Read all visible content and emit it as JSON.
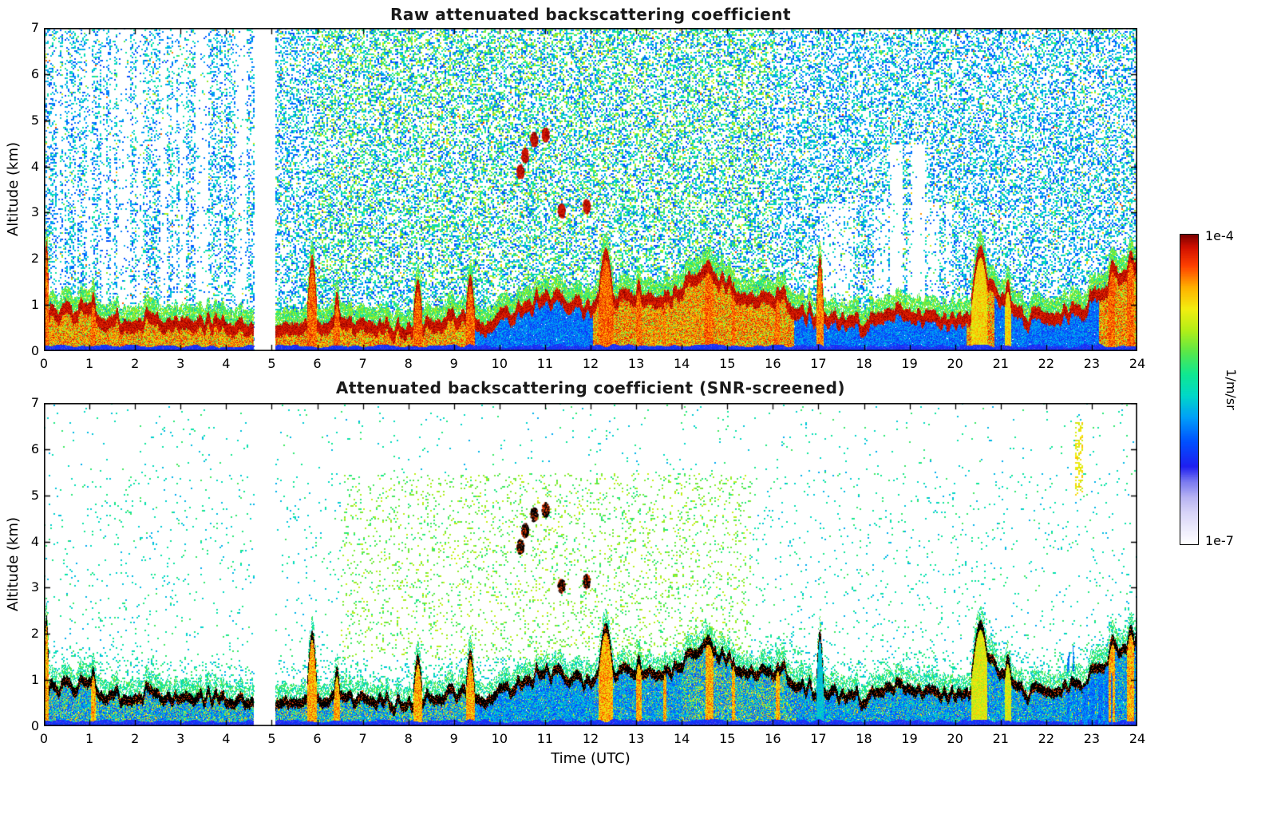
{
  "figure": {
    "background": "#ffffff",
    "text_color": "#000000"
  },
  "colorbar": {
    "max_label": "1e-4",
    "min_label": "1e-7",
    "units": "1/m/sr",
    "scale": "log",
    "stops": [
      [
        0.0,
        "#ffffff"
      ],
      [
        0.05,
        "#eceafc"
      ],
      [
        0.1,
        "#d8d4f8"
      ],
      [
        0.15,
        "#b8b4f2"
      ],
      [
        0.2,
        "#7b7bf0"
      ],
      [
        0.25,
        "#1f1ff0"
      ],
      [
        0.33,
        "#0050ff"
      ],
      [
        0.41,
        "#00a0f8"
      ],
      [
        0.48,
        "#00d8c8"
      ],
      [
        0.55,
        "#10e890"
      ],
      [
        0.62,
        "#58e84a"
      ],
      [
        0.69,
        "#b2ee18"
      ],
      [
        0.76,
        "#f2ee10"
      ],
      [
        0.83,
        "#ffb000"
      ],
      [
        0.9,
        "#ff4000"
      ],
      [
        0.96,
        "#d01000"
      ],
      [
        1.0,
        "#7c0000"
      ]
    ]
  },
  "chart_data": [
    {
      "type": "heatmap",
      "title": "Raw attenuated backscattering coefficient",
      "xlabel": "",
      "ylabel": "Altitude (km)",
      "xlim": [
        0,
        24
      ],
      "ylim": [
        0,
        7
      ],
      "x_ticks": [
        0,
        1,
        2,
        3,
        4,
        5,
        6,
        7,
        8,
        9,
        10,
        11,
        12,
        13,
        14,
        15,
        16,
        17,
        18,
        19,
        20,
        21,
        22,
        23,
        24
      ],
      "y_ticks": [
        0,
        1,
        2,
        3,
        4,
        5,
        6,
        7
      ],
      "colorbar_range": [
        "1e-7",
        "1e-4"
      ],
      "grid": false,
      "description": "Ceilometer raw attenuated backscatter: dense blue-cyan instrument noise above the boundary layer (greener/yellower 6-16 UTC), strong red aerosol layer capped dark-red near 0.5-1 km rising to ~2 km afternoon, dark-blue surface layer, white data gap near 4.6-5.1 UTC, small dark-red cloud echoes near 10.5-12 UTC at 3-4.7 km.",
      "data_gap_utc": [
        4.6,
        5.08
      ],
      "features": {
        "data_gap_utc": [
          4.6,
          5.08
        ],
        "boundary_layer_top_km": [
          [
            0,
            1.05
          ],
          [
            0.3,
            0.95
          ],
          [
            0.7,
            1.0
          ],
          [
            1.0,
            1.05
          ],
          [
            1.3,
            0.85
          ],
          [
            1.7,
            0.75
          ],
          [
            2.0,
            0.8
          ],
          [
            2.3,
            0.9
          ],
          [
            2.6,
            0.75
          ],
          [
            3.0,
            0.7
          ],
          [
            3.4,
            0.8
          ],
          [
            3.8,
            0.7
          ],
          [
            4.2,
            0.65
          ],
          [
            4.6,
            0.62
          ],
          [
            5.1,
            0.55
          ],
          [
            5.5,
            0.62
          ],
          [
            6.1,
            0.75
          ],
          [
            6.5,
            0.85
          ],
          [
            7.0,
            0.65
          ],
          [
            7.5,
            0.6
          ],
          [
            8.0,
            0.68
          ],
          [
            8.5,
            0.78
          ],
          [
            9.0,
            0.85
          ],
          [
            9.5,
            0.7
          ],
          [
            10.0,
            0.85
          ],
          [
            10.5,
            1.05
          ],
          [
            10.9,
            1.3
          ],
          [
            11.2,
            1.25
          ],
          [
            11.6,
            1.1
          ],
          [
            12.0,
            1.15
          ],
          [
            12.6,
            1.2
          ],
          [
            13.0,
            1.3
          ],
          [
            13.4,
            1.15
          ],
          [
            13.8,
            1.35
          ],
          [
            14.1,
            1.6
          ],
          [
            14.5,
            1.8
          ],
          [
            15.0,
            1.55
          ],
          [
            15.4,
            1.3
          ],
          [
            15.8,
            1.25
          ],
          [
            16.2,
            1.35
          ],
          [
            16.5,
            1.05
          ],
          [
            17.0,
            0.9
          ],
          [
            17.4,
            0.75
          ],
          [
            18.0,
            0.7
          ],
          [
            18.5,
            0.85
          ],
          [
            19.0,
            1.05
          ],
          [
            19.4,
            0.85
          ],
          [
            20.0,
            0.75
          ],
          [
            20.3,
            0.9
          ],
          [
            20.6,
            1.9
          ],
          [
            20.9,
            1.4
          ],
          [
            21.2,
            1.0
          ],
          [
            21.6,
            0.8
          ],
          [
            22.0,
            0.85
          ],
          [
            22.4,
            0.95
          ],
          [
            22.8,
            1.05
          ],
          [
            23.2,
            1.4
          ],
          [
            23.6,
            1.8
          ],
          [
            24,
            2.0
          ]
        ],
        "blue_interior_ranges_utc": [
          [
            9.45,
            12.05
          ],
          [
            16.45,
            20.25
          ],
          [
            20.85,
            23.15
          ]
        ],
        "plumes": [
          {
            "t0": 0.0,
            "t1": 0.1,
            "top": 2.3,
            "kind": "red"
          },
          {
            "t0": 1.0,
            "t1": 1.15,
            "top": 1.25,
            "kind": "red"
          },
          {
            "t0": 5.78,
            "t1": 5.98,
            "top": 2.0,
            "kind": "red"
          },
          {
            "t0": 6.35,
            "t1": 6.5,
            "top": 1.25,
            "kind": "red"
          },
          {
            "t0": 8.1,
            "t1": 8.3,
            "top": 1.5,
            "kind": "red"
          },
          {
            "t0": 9.25,
            "t1": 9.45,
            "top": 1.6,
            "kind": "red"
          },
          {
            "t0": 12.15,
            "t1": 12.5,
            "top": 2.15,
            "kind": "red"
          },
          {
            "t0": 12.95,
            "t1": 13.15,
            "top": 1.5,
            "kind": "red"
          },
          {
            "t0": 13.55,
            "t1": 13.7,
            "top": 1.3,
            "kind": "red"
          },
          {
            "t0": 14.35,
            "t1": 14.8,
            "top": 1.9,
            "kind": "red"
          },
          {
            "t0": 15.05,
            "t1": 15.2,
            "top": 1.45,
            "kind": "red"
          },
          {
            "t0": 16.0,
            "t1": 16.2,
            "top": 1.35,
            "kind": "red"
          },
          {
            "t0": 16.95,
            "t1": 17.1,
            "top": 2.0,
            "kind": "cyan"
          },
          {
            "t0": 20.35,
            "t1": 20.75,
            "top": 2.2,
            "kind": "orange"
          },
          {
            "t0": 21.05,
            "t1": 21.25,
            "top": 1.5,
            "kind": "orange"
          },
          {
            "t0": 23.3,
            "t1": 23.6,
            "top": 1.9,
            "kind": "red"
          },
          {
            "t0": 23.7,
            "t1": 24.0,
            "top": 2.1,
            "kind": "red"
          }
        ],
        "clouds_utc_km": [
          [
            10.45,
            3.9
          ],
          [
            10.55,
            4.25
          ],
          [
            10.75,
            4.6
          ],
          [
            11.0,
            4.7
          ],
          [
            11.35,
            3.05
          ],
          [
            11.9,
            3.15
          ]
        ],
        "blue_column_band": {
          "t0": 22.45,
          "t1": 23.45,
          "top": 1.9
        },
        "yellow_streak": {
          "t0": 22.62,
          "t1": 22.78,
          "alt0": 5.0,
          "alt1": 6.6
        },
        "white_columns_utc": [
          [
            18.55,
            18.82
          ],
          [
            19.05,
            19.32
          ]
        ]
      }
    },
    {
      "type": "heatmap",
      "title": "Attenuated backscattering coefficient (SNR-screened)",
      "xlabel": "Time (UTC)",
      "ylabel": "Altitude (km)",
      "xlim": [
        0,
        24
      ],
      "ylim": [
        0,
        7
      ],
      "x_ticks": [
        0,
        1,
        2,
        3,
        4,
        5,
        6,
        7,
        8,
        9,
        10,
        11,
        12,
        13,
        14,
        15,
        16,
        17,
        18,
        19,
        20,
        21,
        22,
        23,
        24
      ],
      "y_ticks": [
        0,
        1,
        2,
        3,
        4,
        5,
        6,
        7
      ],
      "colorbar_range": [
        "1e-7",
        "1e-4"
      ],
      "grid": false,
      "description": "Same scene after SNR screening: free troposphere mostly white with sparse cyan/green speckle and faint yellow speckle 7-15 UTC between 2-5 km; aerosol layer top rendered as saturated black band over blue interior with red/orange plumes; black cloud echoes near 10.5-12 UTC; orange dotted streak near 22.7 UTC at 5-6.6 km; striped blue columns 22.5-23.4 UTC; same data gap 4.6-5.1 UTC.",
      "data_gap_utc": [
        4.6,
        5.08
      ],
      "features_note": "Same aerosol structures as raw panel; noise above the boundary layer removed by SNR screening."
    }
  ]
}
